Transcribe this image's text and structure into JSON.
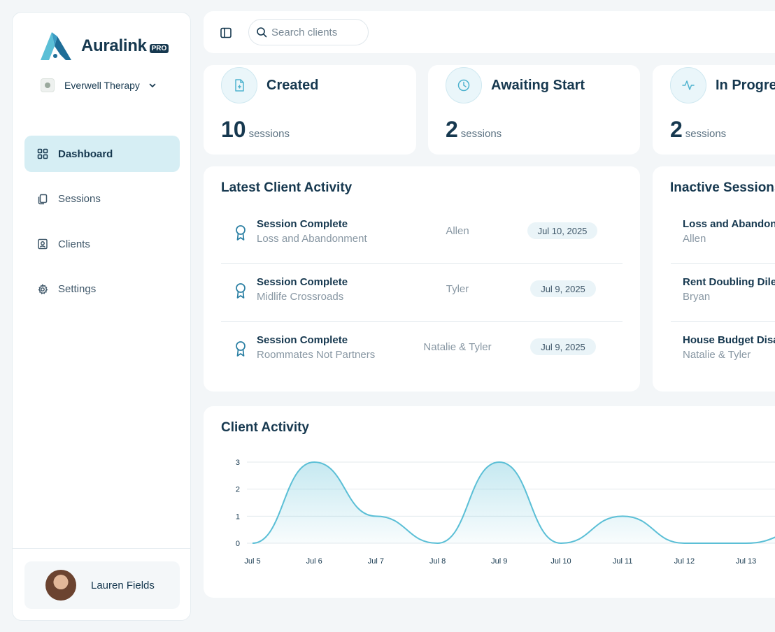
{
  "brand": {
    "name": "Auralink",
    "badge": "PRO",
    "org": "Everwell Therapy"
  },
  "nav": [
    {
      "label": "Dashboard",
      "icon": "grid-icon",
      "active": true
    },
    {
      "label": "Sessions",
      "icon": "copy-icon",
      "active": false
    },
    {
      "label": "Clients",
      "icon": "contact-icon",
      "active": false
    },
    {
      "label": "Settings",
      "icon": "gear-icon",
      "active": false
    }
  ],
  "user": {
    "name": "Lauren Fields"
  },
  "search": {
    "placeholder": "Search clients"
  },
  "stats": [
    {
      "title": "Created",
      "value": "10",
      "unit": "sessions",
      "icon": "file-plus-icon"
    },
    {
      "title": "Awaiting Start",
      "value": "2",
      "unit": "sessions",
      "icon": "clock-icon"
    },
    {
      "title": "In Progress",
      "value": "2",
      "unit": "sessions",
      "icon": "activity-icon"
    }
  ],
  "latest_activity": {
    "title": "Latest Client Activity",
    "rows": [
      {
        "status": "Session Complete",
        "session": "Loss and Abandonment",
        "client": "Allen",
        "date": "Jul 10, 2025"
      },
      {
        "status": "Session Complete",
        "session": "Midlife Crossroads",
        "client": "Tyler",
        "date": "Jul 9, 2025"
      },
      {
        "status": "Session Complete",
        "session": "Roommates Not Partners",
        "client": "Natalie & Tyler",
        "date": "Jul 9, 2025"
      }
    ]
  },
  "inactive_sessions": {
    "title": "Inactive Sessions",
    "rows": [
      {
        "session": "Loss and Abandonment",
        "client": "Allen"
      },
      {
        "session": "Rent Doubling Dilemma",
        "client": "Bryan"
      },
      {
        "session": "House Budget Disagreement",
        "client": "Natalie & Tyler"
      }
    ]
  },
  "chart_title": "Client Activity",
  "colors": {
    "accent": "#5bbfd6",
    "text": "#16384f",
    "active_nav": "#d6eef4"
  },
  "chart_data": {
    "type": "area",
    "title": "Client Activity",
    "categories": [
      "Jul 5",
      "Jul 6",
      "Jul 7",
      "Jul 8",
      "Jul 9",
      "Jul 10",
      "Jul 11",
      "Jul 12",
      "Jul 13"
    ],
    "values": [
      0,
      3,
      1,
      0,
      3,
      0,
      1,
      0,
      0
    ],
    "yticks": [
      0,
      1,
      2,
      3
    ],
    "ylim": [
      0,
      3
    ],
    "grid": true
  }
}
